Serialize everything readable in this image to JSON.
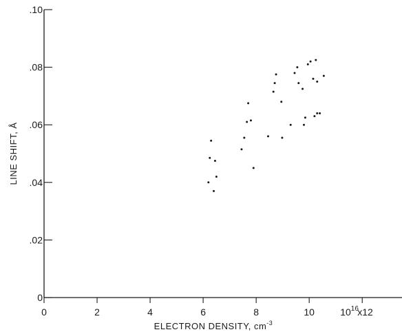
{
  "chart_data": {
    "type": "scatter",
    "title": "",
    "xlabel": "ELECTRON DENSITY, cm",
    "xlabel_sup": "-3",
    "ylabel": "LINE SHIFT, Å",
    "xlim": [
      0,
      13.5
    ],
    "ylim": [
      0,
      0.1
    ],
    "x_ticks": [
      {
        "value": 0,
        "label": "0"
      },
      {
        "value": 2,
        "label": "2"
      },
      {
        "value": 4,
        "label": "4"
      },
      {
        "value": 6,
        "label": "6"
      },
      {
        "value": 8,
        "label": "8"
      },
      {
        "value": 10,
        "label": "10"
      },
      {
        "value": 12,
        "label": "x12"
      }
    ],
    "x_scale_base": "10",
    "x_scale_exp": "16",
    "y_ticks": [
      {
        "value": 0,
        "label": "0"
      },
      {
        "value": 0.02,
        "label": ".02"
      },
      {
        "value": 0.04,
        "label": ".04"
      },
      {
        "value": 0.06,
        "label": ".06"
      },
      {
        "value": 0.08,
        "label": ".08"
      },
      {
        "value": 0.1,
        "label": ".10"
      }
    ],
    "grid": false,
    "points": [
      {
        "x": 6.3,
        "y": 0.0545
      },
      {
        "x": 6.25,
        "y": 0.0485
      },
      {
        "x": 6.45,
        "y": 0.0475
      },
      {
        "x": 6.5,
        "y": 0.042
      },
      {
        "x": 6.2,
        "y": 0.04
      },
      {
        "x": 6.4,
        "y": 0.037
      },
      {
        "x": 7.45,
        "y": 0.0515
      },
      {
        "x": 7.55,
        "y": 0.0555
      },
      {
        "x": 7.65,
        "y": 0.061
      },
      {
        "x": 7.8,
        "y": 0.0615
      },
      {
        "x": 7.7,
        "y": 0.0675
      },
      {
        "x": 7.9,
        "y": 0.045
      },
      {
        "x": 8.45,
        "y": 0.056
      },
      {
        "x": 8.65,
        "y": 0.0715
      },
      {
        "x": 8.7,
        "y": 0.0745
      },
      {
        "x": 8.75,
        "y": 0.0775
      },
      {
        "x": 8.95,
        "y": 0.068
      },
      {
        "x": 8.98,
        "y": 0.0555
      },
      {
        "x": 9.3,
        "y": 0.06
      },
      {
        "x": 9.45,
        "y": 0.078
      },
      {
        "x": 9.55,
        "y": 0.08
      },
      {
        "x": 9.6,
        "y": 0.0745
      },
      {
        "x": 9.75,
        "y": 0.0725
      },
      {
        "x": 9.8,
        "y": 0.06
      },
      {
        "x": 9.85,
        "y": 0.0625
      },
      {
        "x": 9.95,
        "y": 0.081
      },
      {
        "x": 10.05,
        "y": 0.082
      },
      {
        "x": 10.15,
        "y": 0.076
      },
      {
        "x": 10.2,
        "y": 0.063
      },
      {
        "x": 10.25,
        "y": 0.0825
      },
      {
        "x": 10.3,
        "y": 0.064
      },
      {
        "x": 10.3,
        "y": 0.075
      },
      {
        "x": 10.4,
        "y": 0.064
      },
      {
        "x": 10.55,
        "y": 0.077
      }
    ]
  }
}
